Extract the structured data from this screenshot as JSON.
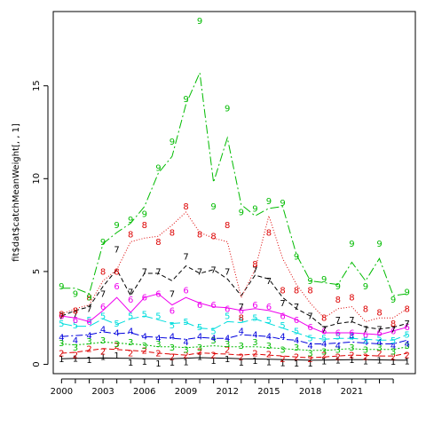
{
  "chart_data": {
    "type": "line",
    "title": "",
    "xlabel": "",
    "ylabel": "fit$dat$catchMeanWeight[, , 1]",
    "xlim": [
      1999.4,
      2025.6
    ],
    "ylim": [
      -0.5,
      19
    ],
    "x_ticks": [
      2000,
      2003,
      2006,
      2009,
      2012,
      2015,
      2018,
      2021
    ],
    "y_ticks": [
      0,
      5,
      10,
      15
    ],
    "grid": false,
    "legend": "none",
    "years": [
      2000,
      2001,
      2002,
      2003,
      2004,
      2005,
      2006,
      2007,
      2008,
      2009,
      2010,
      2011,
      2012,
      2013,
      2014,
      2015,
      2016,
      2017,
      2018,
      2019,
      2020,
      2021,
      2022,
      2023,
      2024,
      2025
    ],
    "series": [
      {
        "label": "1",
        "color": "#000000",
        "dash": "",
        "fitted": [
          0.3,
          0.32,
          0.33,
          0.34,
          0.33,
          0.32,
          0.31,
          0.3,
          0.31,
          0.33,
          0.36,
          0.34,
          0.33,
          0.3,
          0.29,
          0.28,
          0.26,
          0.24,
          0.22,
          0.23,
          0.24,
          0.25,
          0.25,
          0.24,
          0.23,
          0.22
        ],
        "observed": [
          0.3,
          0.31,
          0.25,
          0.42,
          0.48,
          0.1,
          0.14,
          0.05,
          0.1,
          0.12,
          0.4,
          0.2,
          0.3,
          0.1,
          0.2,
          0.12,
          0.08,
          0.05,
          0.05,
          0.18,
          0.22,
          0.25,
          0.18,
          0.22,
          0.15,
          0.18
        ]
      },
      {
        "label": "2",
        "color": "#dd0000",
        "dash": "6,3",
        "fitted": [
          0.6,
          0.65,
          0.75,
          0.85,
          0.8,
          0.75,
          0.7,
          0.6,
          0.55,
          0.5,
          0.62,
          0.58,
          0.55,
          0.5,
          0.55,
          0.5,
          0.45,
          0.4,
          0.35,
          0.4,
          0.45,
          0.5,
          0.48,
          0.45,
          0.45,
          0.6
        ],
        "observed": [
          0.6,
          0.5,
          0.85,
          0.7,
          1.0,
          0.6,
          0.75,
          0.6,
          0.4,
          0.5,
          0.7,
          0.5,
          0.8,
          0.4,
          0.6,
          0.55,
          0.3,
          0.4,
          0.3,
          0.5,
          0.4,
          0.5,
          0.4,
          0.6,
          0.4,
          0.5
        ]
      },
      {
        "label": "3",
        "color": "#00bb00",
        "dash": "2,2",
        "fitted": [
          1.1,
          1.05,
          1.1,
          1.2,
          1.15,
          1.1,
          1.05,
          0.95,
          0.95,
          0.9,
          0.95,
          1.0,
          0.95,
          0.95,
          0.95,
          0.9,
          0.85,
          0.8,
          0.75,
          0.75,
          0.8,
          0.85,
          0.8,
          0.8,
          0.8,
          0.95
        ],
        "observed": [
          1.15,
          0.9,
          1.25,
          1.3,
          1.1,
          1.2,
          1.0,
          1.1,
          0.9,
          0.8,
          0.9,
          1.3,
          1.1,
          1.0,
          1.2,
          1.0,
          0.8,
          0.9,
          0.6,
          0.7,
          0.8,
          0.9,
          0.8,
          0.9,
          0.7,
          1.0
        ]
      },
      {
        "label": "4",
        "color": "#0000dd",
        "dash": "8,3,2,3",
        "fitted": [
          1.5,
          1.55,
          1.6,
          1.75,
          1.65,
          1.7,
          1.5,
          1.45,
          1.4,
          1.35,
          1.45,
          1.4,
          1.4,
          1.6,
          1.55,
          1.5,
          1.35,
          1.3,
          1.1,
          1.1,
          1.15,
          1.2,
          1.15,
          1.1,
          1.1,
          1.3
        ],
        "observed": [
          1.45,
          1.3,
          1.55,
          1.9,
          1.7,
          1.8,
          1.5,
          1.4,
          1.5,
          1.2,
          1.5,
          1.4,
          1.4,
          1.8,
          1.6,
          1.5,
          1.5,
          1.3,
          1.0,
          1.1,
          1.0,
          1.5,
          1.2,
          1.2,
          1.0,
          1.1
        ]
      },
      {
        "label": "5",
        "color": "#00dddd",
        "dash": "12,4",
        "fitted": [
          2.2,
          2.05,
          2.05,
          2.45,
          2.15,
          2.45,
          2.6,
          2.4,
          2.2,
          2.25,
          1.95,
          1.9,
          2.3,
          2.25,
          2.45,
          2.2,
          1.95,
          1.7,
          1.45,
          1.35,
          1.4,
          1.4,
          1.35,
          1.3,
          1.3,
          1.6
        ],
        "observed": [
          2.2,
          2.1,
          2.4,
          2.6,
          2.2,
          2.6,
          2.7,
          2.6,
          2.1,
          2.3,
          2.0,
          1.8,
          2.6,
          2.4,
          2.5,
          2.4,
          2.1,
          1.8,
          1.4,
          1.4,
          1.5,
          1.5,
          1.3,
          1.4,
          1.3,
          1.6
        ]
      },
      {
        "label": "6",
        "color": "#ee00ee",
        "dash": "",
        "fitted": [
          2.6,
          2.5,
          2.3,
          2.9,
          3.6,
          2.8,
          3.6,
          3.8,
          3.2,
          3.6,
          3.3,
          3.1,
          3.05,
          2.9,
          3.0,
          2.9,
          2.7,
          2.4,
          2.0,
          1.7,
          1.7,
          1.7,
          1.65,
          1.6,
          1.8,
          2.0
        ],
        "observed": [
          2.6,
          2.4,
          2.3,
          3.1,
          4.2,
          3.5,
          3.6,
          3.8,
          2.9,
          4.0,
          3.2,
          3.2,
          3.0,
          2.9,
          3.2,
          3.1,
          2.6,
          2.4,
          2.0,
          1.8,
          1.7,
          1.7,
          1.6,
          1.7,
          1.8,
          2.0
        ]
      },
      {
        "label": "7",
        "color": "#000000",
        "dash": "5,3",
        "fitted": [
          2.6,
          2.9,
          3.1,
          4.2,
          5.1,
          3.7,
          4.9,
          4.9,
          4.5,
          5.3,
          4.9,
          5.1,
          4.6,
          3.7,
          4.8,
          4.6,
          3.6,
          3.0,
          2.6,
          2.0,
          2.2,
          2.3,
          2.0,
          1.9,
          2.0,
          2.2
        ],
        "observed": [
          2.6,
          2.7,
          3.0,
          3.8,
          6.2,
          3.9,
          5.0,
          5.0,
          3.8,
          5.8,
          5.0,
          5.1,
          5.0,
          3.1,
          5.1,
          4.5,
          3.3,
          3.1,
          2.6,
          1.9,
          2.4,
          2.4,
          1.9,
          1.9,
          1.9,
          2.2
        ]
      },
      {
        "label": "8",
        "color": "#dd0000",
        "dash": "1,2",
        "fitted": [
          2.7,
          3.0,
          3.2,
          4.5,
          5.1,
          6.6,
          6.8,
          6.9,
          7.5,
          8.2,
          7.1,
          6.8,
          6.6,
          3.6,
          5.1,
          8.0,
          5.7,
          4.3,
          3.3,
          2.5,
          3.0,
          3.1,
          2.3,
          2.5,
          2.5,
          3.0
        ],
        "observed": [
          2.7,
          2.9,
          3.6,
          5.0,
          5.0,
          7.0,
          7.5,
          6.6,
          7.1,
          8.5,
          7.0,
          6.9,
          7.5,
          2.5,
          5.4,
          7.1,
          4.0,
          4.0,
          4.0,
          2.5,
          3.5,
          3.6,
          3.0,
          2.8,
          2.2,
          3.0
        ]
      },
      {
        "label": "9",
        "color": "#00bb00",
        "dash": "10,3,2,3",
        "fitted": [
          4.1,
          4.1,
          3.8,
          6.5,
          7.1,
          7.6,
          8.5,
          10.3,
          11.2,
          14.0,
          15.7,
          9.8,
          12.2,
          8.6,
          8.0,
          8.4,
          8.5,
          5.9,
          4.5,
          4.4,
          4.3,
          5.5,
          4.5,
          5.7,
          3.7,
          3.8
        ],
        "observed": [
          4.2,
          3.8,
          3.6,
          6.6,
          7.5,
          7.8,
          8.1,
          10.6,
          12.0,
          14.3,
          18.5,
          8.5,
          13.8,
          8.2,
          8.4,
          8.8,
          8.7,
          5.8,
          4.5,
          4.6,
          4.2,
          6.5,
          4.2,
          6.5,
          3.5,
          3.9
        ]
      }
    ]
  }
}
